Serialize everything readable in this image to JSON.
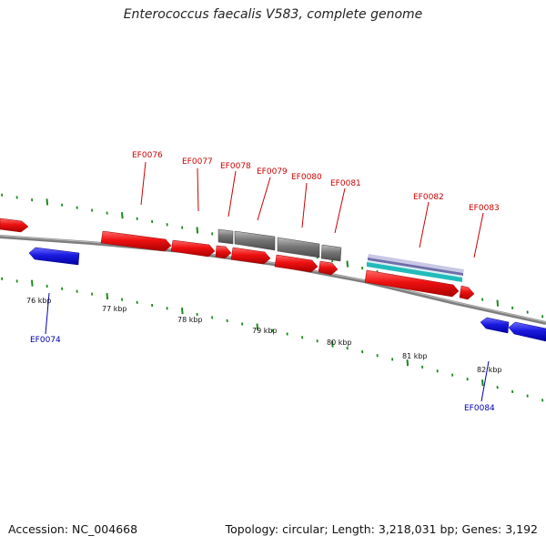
{
  "title": "Enterococcus faecalis V583, complete genome",
  "footer": {
    "accession": "Accession: NC_004668",
    "summary": "Topology: circular; Length: 3,218,031 bp; Genes: 3,192"
  },
  "scale_labels": [
    "76 kbp",
    "77 kbp",
    "78 kbp",
    "79 kbp",
    "80 kbp",
    "81 kbp",
    "82 kbp"
  ],
  "gene_labels": [
    "EF0074",
    "EF0076",
    "EF0077",
    "EF0078",
    "EF0079",
    "EF0080",
    "EF0081",
    "EF0082",
    "EF0083",
    "EF0084"
  ],
  "colors": {
    "forward_gene": "#ee1111",
    "reverse_gene": "#1a1ae0",
    "feature_gray": "#777777",
    "backbone": "#8a8a8a",
    "tick": "#1a8a1a",
    "label_forward": "#cc0000",
    "label_reverse": "#0000aa",
    "stripe_purple": "#7777aa",
    "stripe_cyan": "#22bbbb"
  }
}
